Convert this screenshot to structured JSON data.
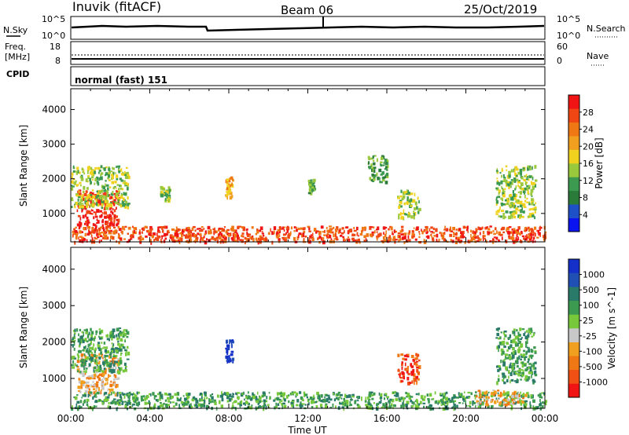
{
  "header": {
    "station": "Inuvik (fitACF)",
    "beam": "Beam 06",
    "date": "25/Oct/2019"
  },
  "strips": {
    "nsky_label": "N.Sky",
    "nsearch_label": "N.Search",
    "noise_ticks": [
      "10^5",
      "10^0"
    ],
    "freq_label_1": "Freq.",
    "freq_label_2": "[MHz]",
    "freq_ticks": [
      "18",
      "8"
    ],
    "nave_label": "Nave",
    "nave_ticks": [
      "60",
      "0"
    ],
    "cpid_label": "CPID",
    "cpid_value": "normal (fast) 151"
  },
  "axes": {
    "ylabel": "Slant Range [km]",
    "yticks": [
      1000,
      2000,
      3000,
      4000
    ],
    "xticks": [
      "00:00",
      "04:00",
      "08:00",
      "12:00",
      "16:00",
      "20:00",
      "00:00"
    ],
    "xlabel": "Time UT"
  },
  "colors": {
    "power": [
      "#0a14f0",
      "#1e50c8",
      "#2a7a3a",
      "#3c9a50",
      "#9ac83c",
      "#f0d21e",
      "#f0a01e",
      "#f07814",
      "#f04614",
      "#f01414"
    ],
    "velocity": [
      "#f01414",
      "#f05014",
      "#f07814",
      "#f0a01e",
      "#c8c8c8",
      "#78c83c",
      "#3c9a50",
      "#2a7a6a",
      "#2050b4",
      "#1430c8"
    ]
  },
  "chart_data": [
    {
      "type": "heatmap",
      "title": "",
      "xlabel": "",
      "ylabel": "Slant Range [km]",
      "xlim": [
        "00:00",
        "00:00"
      ],
      "ylim": [
        180,
        4600
      ],
      "colorbar": {
        "label": "Power [dB]",
        "ticks": [
          4,
          8,
          12,
          16,
          20,
          24,
          28
        ]
      },
      "regions": [
        {
          "t0": 0.3,
          "t1": 2.4,
          "r0": 600,
          "r1": 1700,
          "value": 28
        },
        {
          "t0": 0.0,
          "t1": 2.9,
          "r0": 1200,
          "r1": 2400,
          "value": 12
        },
        {
          "t0": 0.0,
          "t1": 24.0,
          "r0": 200,
          "r1": 650,
          "value": 24
        },
        {
          "t0": 4.5,
          "t1": 5.0,
          "r0": 1400,
          "r1": 1800,
          "value": 12
        },
        {
          "t0": 7.8,
          "t1": 8.2,
          "r0": 1500,
          "r1": 2100,
          "value": 20
        },
        {
          "t0": 12.0,
          "t1": 12.3,
          "r0": 1600,
          "r1": 2000,
          "value": 10
        },
        {
          "t0": 15.0,
          "t1": 16.0,
          "r0": 1900,
          "r1": 2700,
          "value": 10
        },
        {
          "t0": 16.5,
          "t1": 17.6,
          "r0": 900,
          "r1": 1700,
          "value": 14
        },
        {
          "t0": 21.5,
          "t1": 23.5,
          "r0": 900,
          "r1": 2400,
          "value": 12
        }
      ]
    },
    {
      "type": "heatmap",
      "title": "",
      "xlabel": "Time UT",
      "ylabel": "Slant Range [km]",
      "xlim": [
        "00:00",
        "00:00"
      ],
      "ylim": [
        180,
        4600
      ],
      "colorbar": {
        "label": "Velocity [m s^-1]",
        "ticks": [
          -1000,
          -500,
          -100,
          -25,
          25,
          100,
          500,
          1000
        ]
      },
      "regions": [
        {
          "t0": 0.3,
          "t1": 2.4,
          "r0": 600,
          "r1": 1700,
          "value": -100
        },
        {
          "t0": 0.0,
          "t1": 2.9,
          "r0": 1200,
          "r1": 2400,
          "value": 100
        },
        {
          "t0": 0.0,
          "t1": 24.0,
          "r0": 200,
          "r1": 650,
          "value": 100
        },
        {
          "t0": 7.8,
          "t1": 8.2,
          "r0": 1500,
          "r1": 2100,
          "value": 1000
        },
        {
          "t0": 16.5,
          "t1": 17.6,
          "r0": 900,
          "r1": 1700,
          "value": -500
        },
        {
          "t0": 20.5,
          "t1": 23.0,
          "r0": 300,
          "r1": 700,
          "value": -100
        },
        {
          "t0": 21.5,
          "t1": 23.5,
          "r0": 900,
          "r1": 2400,
          "value": 100
        }
      ]
    }
  ]
}
